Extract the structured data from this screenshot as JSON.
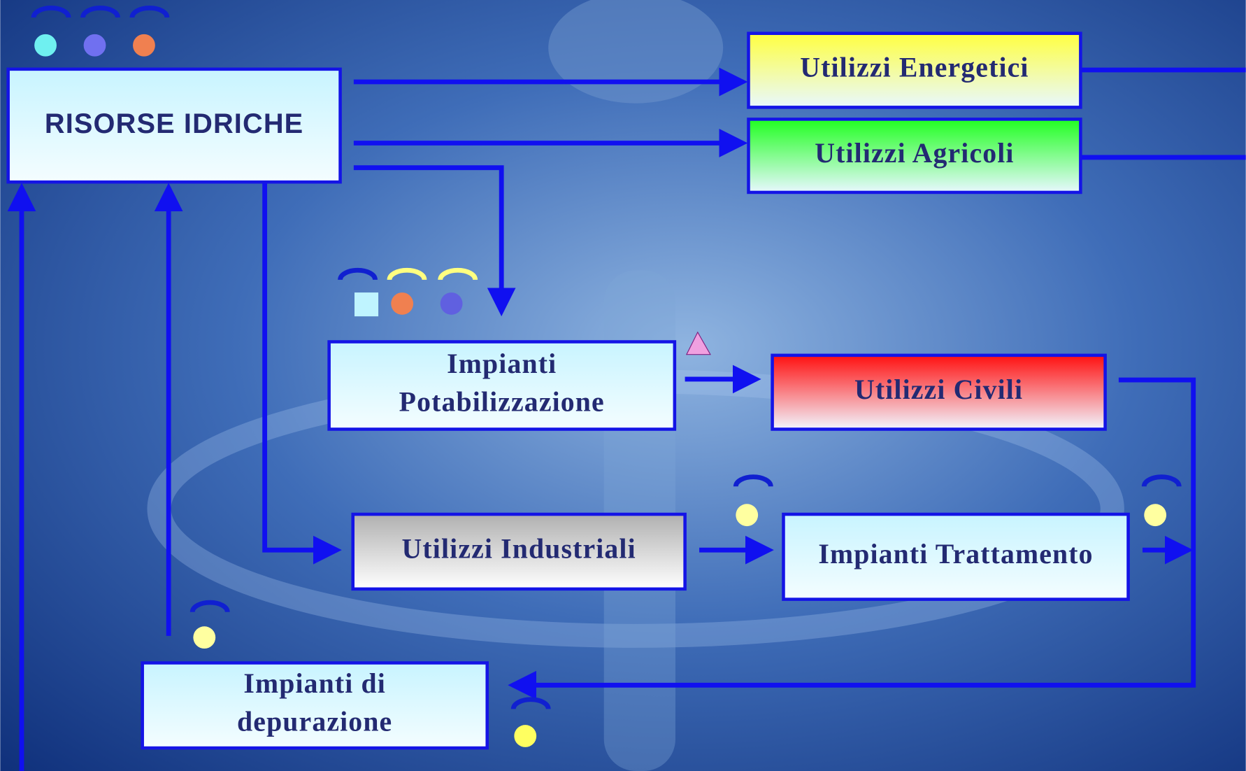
{
  "nodes": [
    {
      "lines": [
        "RISORSE IDRICHE"
      ]
    },
    {
      "lines": [
        "Utilizzi  Energetici"
      ]
    },
    {
      "lines": [
        "Utilizzi Agricoli"
      ]
    },
    {
      "lines": [
        "Impianti",
        "Potabilizzazione"
      ]
    },
    {
      "lines": [
        "Utilizzi Civili"
      ]
    },
    {
      "lines": [
        "Utilizzi Industriali"
      ]
    },
    {
      "lines": [
        "Impianti Trattamento"
      ]
    },
    {
      "lines": [
        "Impianti di",
        "depurazione"
      ]
    }
  ]
}
